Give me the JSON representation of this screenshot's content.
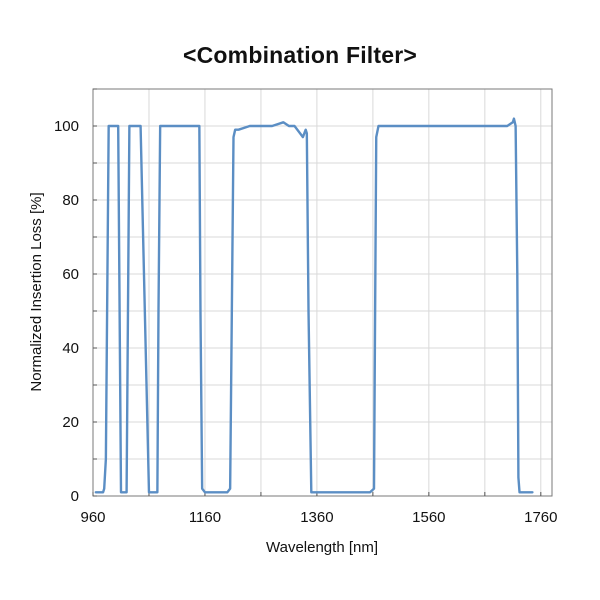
{
  "chart_data": {
    "type": "line",
    "title": "<Combination Filter>",
    "xlabel": "Wavelength [nm]",
    "ylabel": "Normalized Insertion Loss [%]",
    "xlim": [
      960,
      1780
    ],
    "ylim": [
      0,
      110
    ],
    "xticks": [
      960,
      1160,
      1360,
      1560,
      1760
    ],
    "yticks": [
      0,
      20,
      40,
      60,
      80,
      100
    ],
    "grid": true,
    "series": [
      {
        "color": "#5b8ec4",
        "x": [
          965,
          975,
          978,
          980,
          983,
          988,
          990,
          993,
          996,
          1000,
          1003,
          1005,
          1010,
          1015,
          1020,
          1025,
          1030,
          1033,
          1037,
          1040,
          1045,
          1060,
          1070,
          1075,
          1077,
          1080,
          1090,
          1100,
          1120,
          1140,
          1150,
          1152,
          1155,
          1160,
          1180,
          1200,
          1205,
          1211,
          1214,
          1217,
          1220,
          1240,
          1260,
          1280,
          1300,
          1310,
          1320,
          1330,
          1335,
          1340,
          1342,
          1345,
          1350,
          1360,
          1380,
          1400,
          1420,
          1440,
          1455,
          1462,
          1464,
          1466,
          1470,
          1480,
          1500,
          1520,
          1540,
          1560,
          1580,
          1600,
          1620,
          1640,
          1660,
          1680,
          1700,
          1710,
          1712,
          1715,
          1718,
          1720,
          1722,
          1724,
          1730,
          1740,
          1745
        ],
        "y": [
          1,
          1,
          1,
          2,
          10,
          100,
          100,
          100,
          100,
          100,
          100,
          100,
          1,
          1,
          1,
          100,
          100,
          100,
          100,
          100,
          100,
          1,
          1,
          1,
          50,
          100,
          100,
          100,
          100,
          100,
          100,
          50,
          2,
          1,
          1,
          1,
          2,
          97,
          99,
          99,
          99,
          100,
          100,
          100,
          101,
          100,
          100,
          98,
          97,
          99,
          98,
          50,
          1,
          1,
          1,
          1,
          1,
          1,
          1,
          2,
          50,
          97,
          100,
          100,
          100,
          100,
          100,
          100,
          100,
          100,
          100,
          100,
          100,
          100,
          100,
          101,
          102,
          100,
          60,
          5,
          1,
          1,
          1,
          1,
          1
        ]
      }
    ]
  }
}
